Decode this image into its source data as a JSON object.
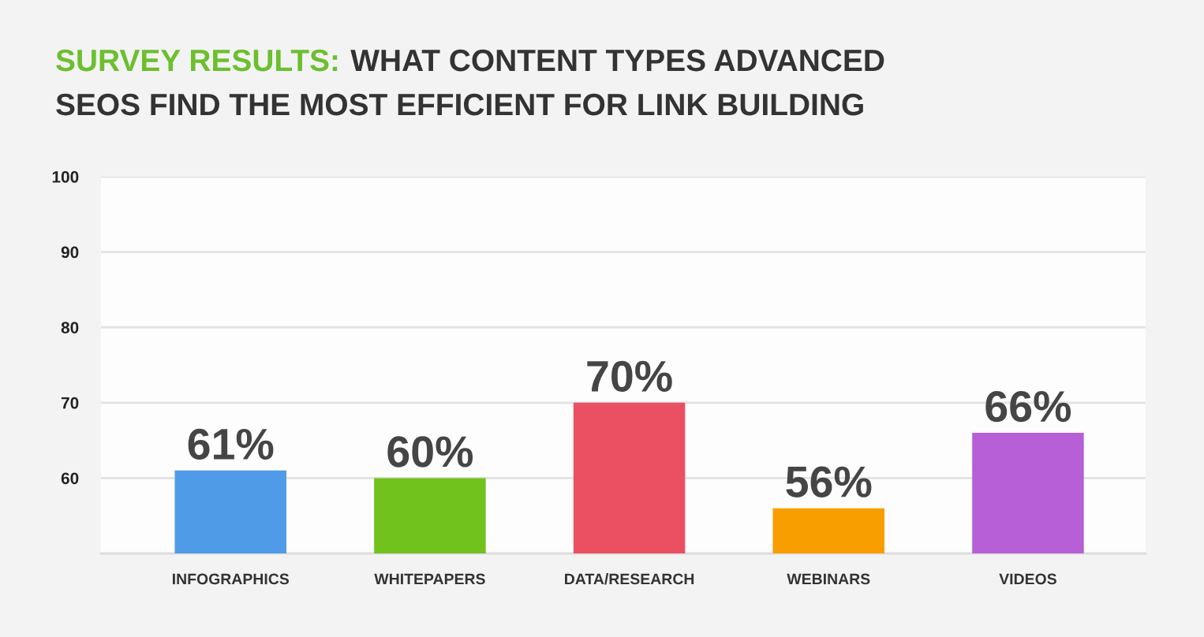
{
  "chart_data": {
    "type": "bar",
    "title": "SURVEY RESULTS: WHAT CONTENT TYPES ADVANCED SEOS FIND THE MOST EFFICIENT FOR LINK BUILDING",
    "categories": [
      "INFOGRAPHICS",
      "WHITEPAPERS",
      "DATA/RESEARCH",
      "WEBINARS",
      "VIDEOS"
    ],
    "values": [
      61,
      60,
      70,
      56,
      66
    ],
    "colors": [
      "#4f9be8",
      "#72c21e",
      "#ea5061",
      "#f99e00",
      "#b65fd6"
    ],
    "value_labels": [
      "61%",
      "60%",
      "70%",
      "56%",
      "66%"
    ],
    "ylim": [
      50,
      100
    ],
    "yticks": [
      60,
      70,
      80,
      90,
      100
    ],
    "grid": "y"
  }
}
